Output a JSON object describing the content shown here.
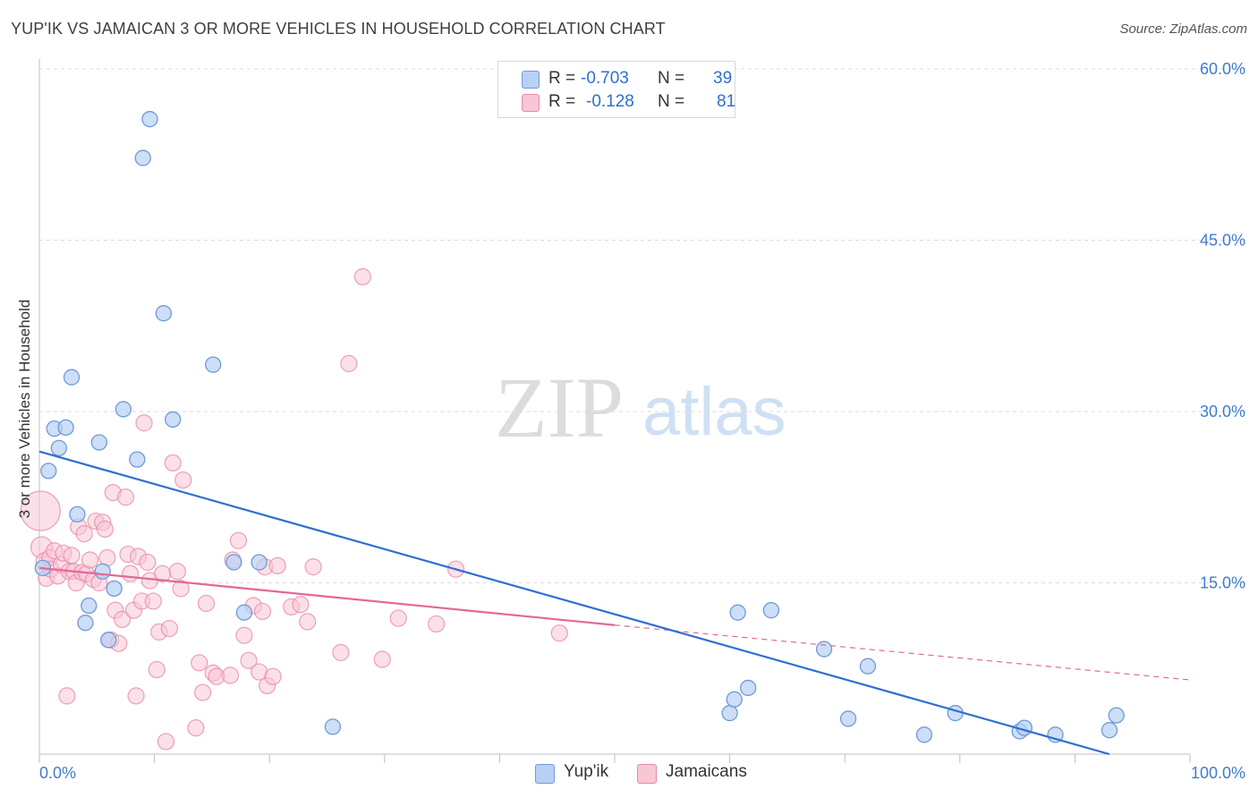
{
  "header": {
    "title": "YUP'IK VS JAMAICAN 3 OR MORE VEHICLES IN HOUSEHOLD CORRELATION CHART",
    "source": "Source: ZipAtlas.com"
  },
  "watermark": {
    "zip": "ZIP",
    "atlas": "atlas"
  },
  "legend": {
    "r_label": "R =",
    "n_label": "N =",
    "rows": [
      {
        "name": "Yup'ik",
        "r": "-0.703",
        "n": "39"
      },
      {
        "name": "Jamaicans",
        "r": "-0.128",
        "n": "81"
      }
    ]
  },
  "colors": {
    "yupik_fill": "#b8d0f3",
    "yupik_stroke": "#6f9ad8",
    "yupik_line": "#2f6fd0",
    "jam_fill": "#f8c6d5",
    "jam_stroke": "#e88aa7",
    "jam_line": "#e2679a",
    "tick_label": "#3f7bd1"
  },
  "chart_data": {
    "type": "scatter",
    "title": "YUP'IK VS JAMAICAN 3 OR MORE VEHICLES IN HOUSEHOLD CORRELATION CHART",
    "xlabel": "",
    "ylabel": "3 or more Vehicles in Household",
    "xlim": [
      0,
      100
    ],
    "ylim": [
      0,
      60
    ],
    "x_tick_labels": [
      "0.0%",
      "100.0%"
    ],
    "y_ticks": [
      15,
      30,
      45,
      60
    ],
    "y_tick_labels": [
      "15.0%",
      "30.0%",
      "45.0%",
      "60.0%"
    ],
    "grid": true,
    "legend_position": "top-center",
    "series": [
      {
        "name": "Yup'ik",
        "points": [
          [
            0.3,
            16.3
          ],
          [
            0.8,
            24.8
          ],
          [
            1.3,
            28.5
          ],
          [
            1.7,
            26.8
          ],
          [
            2.3,
            28.6
          ],
          [
            2.8,
            33.0
          ],
          [
            3.3,
            21.0
          ],
          [
            4.0,
            11.5
          ],
          [
            4.3,
            13.0
          ],
          [
            5.2,
            27.3
          ],
          [
            5.5,
            16.0
          ],
          [
            6.0,
            10.0
          ],
          [
            6.5,
            14.5
          ],
          [
            7.3,
            30.2
          ],
          [
            8.5,
            25.8
          ],
          [
            9.0,
            52.2
          ],
          [
            9.6,
            55.6
          ],
          [
            10.8,
            38.6
          ],
          [
            11.6,
            29.3
          ],
          [
            15.1,
            34.1
          ],
          [
            16.9,
            16.8
          ],
          [
            17.8,
            12.4
          ],
          [
            19.1,
            16.8
          ],
          [
            25.5,
            2.4
          ],
          [
            60.0,
            3.6
          ],
          [
            60.4,
            4.8
          ],
          [
            60.7,
            12.4
          ],
          [
            61.6,
            5.8
          ],
          [
            63.6,
            12.6
          ],
          [
            68.2,
            9.2
          ],
          [
            70.3,
            3.1
          ],
          [
            72.0,
            7.7
          ],
          [
            76.9,
            1.7
          ],
          [
            79.6,
            3.6
          ],
          [
            85.2,
            2.0
          ],
          [
            85.6,
            2.3
          ],
          [
            88.3,
            1.7
          ],
          [
            93.0,
            2.1
          ],
          [
            93.6,
            3.4
          ]
        ],
        "trend": {
          "x0": 0,
          "y0": 26.5,
          "x1": 93,
          "y1": 0,
          "dashed_extension": false
        }
      },
      {
        "name": "Jamaicans",
        "points": [
          [
            0.1,
            21.3
          ],
          [
            0.2,
            18.1
          ],
          [
            0.4,
            16.9
          ],
          [
            0.6,
            15.4
          ],
          [
            0.9,
            17.2
          ],
          [
            1.0,
            16.2
          ],
          [
            1.3,
            17.8
          ],
          [
            1.6,
            15.6
          ],
          [
            1.9,
            16.6
          ],
          [
            2.1,
            17.6
          ],
          [
            2.4,
            5.1
          ],
          [
            2.6,
            16.0
          ],
          [
            2.8,
            17.4
          ],
          [
            3.0,
            16.0
          ],
          [
            3.2,
            15.0
          ],
          [
            3.4,
            19.9
          ],
          [
            3.7,
            15.9
          ],
          [
            3.9,
            19.3
          ],
          [
            4.1,
            15.8
          ],
          [
            4.4,
            17.0
          ],
          [
            4.7,
            15.3
          ],
          [
            4.9,
            20.4
          ],
          [
            5.2,
            15.0
          ],
          [
            5.5,
            20.3
          ],
          [
            5.7,
            19.7
          ],
          [
            5.9,
            17.2
          ],
          [
            6.2,
            10.0
          ],
          [
            6.4,
            22.9
          ],
          [
            6.6,
            12.6
          ],
          [
            6.9,
            9.7
          ],
          [
            7.2,
            11.8
          ],
          [
            7.5,
            22.5
          ],
          [
            7.7,
            17.5
          ],
          [
            7.9,
            15.8
          ],
          [
            8.2,
            12.6
          ],
          [
            8.4,
            5.1
          ],
          [
            8.6,
            17.3
          ],
          [
            8.9,
            13.4
          ],
          [
            9.1,
            29.0
          ],
          [
            9.4,
            16.8
          ],
          [
            9.6,
            15.2
          ],
          [
            9.9,
            13.4
          ],
          [
            10.2,
            7.4
          ],
          [
            10.4,
            10.7
          ],
          [
            10.7,
            15.8
          ],
          [
            11.0,
            1.1
          ],
          [
            11.3,
            11.0
          ],
          [
            11.6,
            25.5
          ],
          [
            12.0,
            16.0
          ],
          [
            12.3,
            14.5
          ],
          [
            12.5,
            24.0
          ],
          [
            13.6,
            2.3
          ],
          [
            13.9,
            8.0
          ],
          [
            14.2,
            5.4
          ],
          [
            14.5,
            13.2
          ],
          [
            15.1,
            7.1
          ],
          [
            15.4,
            6.8
          ],
          [
            16.6,
            6.9
          ],
          [
            16.8,
            17.0
          ],
          [
            17.3,
            18.7
          ],
          [
            17.8,
            10.4
          ],
          [
            18.2,
            8.2
          ],
          [
            18.6,
            13.0
          ],
          [
            19.1,
            7.2
          ],
          [
            19.4,
            12.5
          ],
          [
            19.6,
            16.4
          ],
          [
            19.8,
            6.0
          ],
          [
            20.3,
            6.8
          ],
          [
            20.7,
            16.5
          ],
          [
            21.9,
            12.9
          ],
          [
            22.7,
            13.1
          ],
          [
            23.3,
            11.6
          ],
          [
            23.8,
            16.4
          ],
          [
            26.2,
            8.9
          ],
          [
            26.9,
            34.2
          ],
          [
            28.1,
            41.8
          ],
          [
            29.8,
            8.3
          ],
          [
            31.2,
            11.9
          ],
          [
            34.5,
            11.4
          ],
          [
            36.2,
            16.2
          ],
          [
            45.2,
            10.6
          ]
        ],
        "trend": {
          "x0": 0,
          "y0": 16.3,
          "x1": 50,
          "y1": 11.3,
          "dashed_extension": true,
          "x2": 100,
          "y2": 6.5
        }
      }
    ]
  }
}
